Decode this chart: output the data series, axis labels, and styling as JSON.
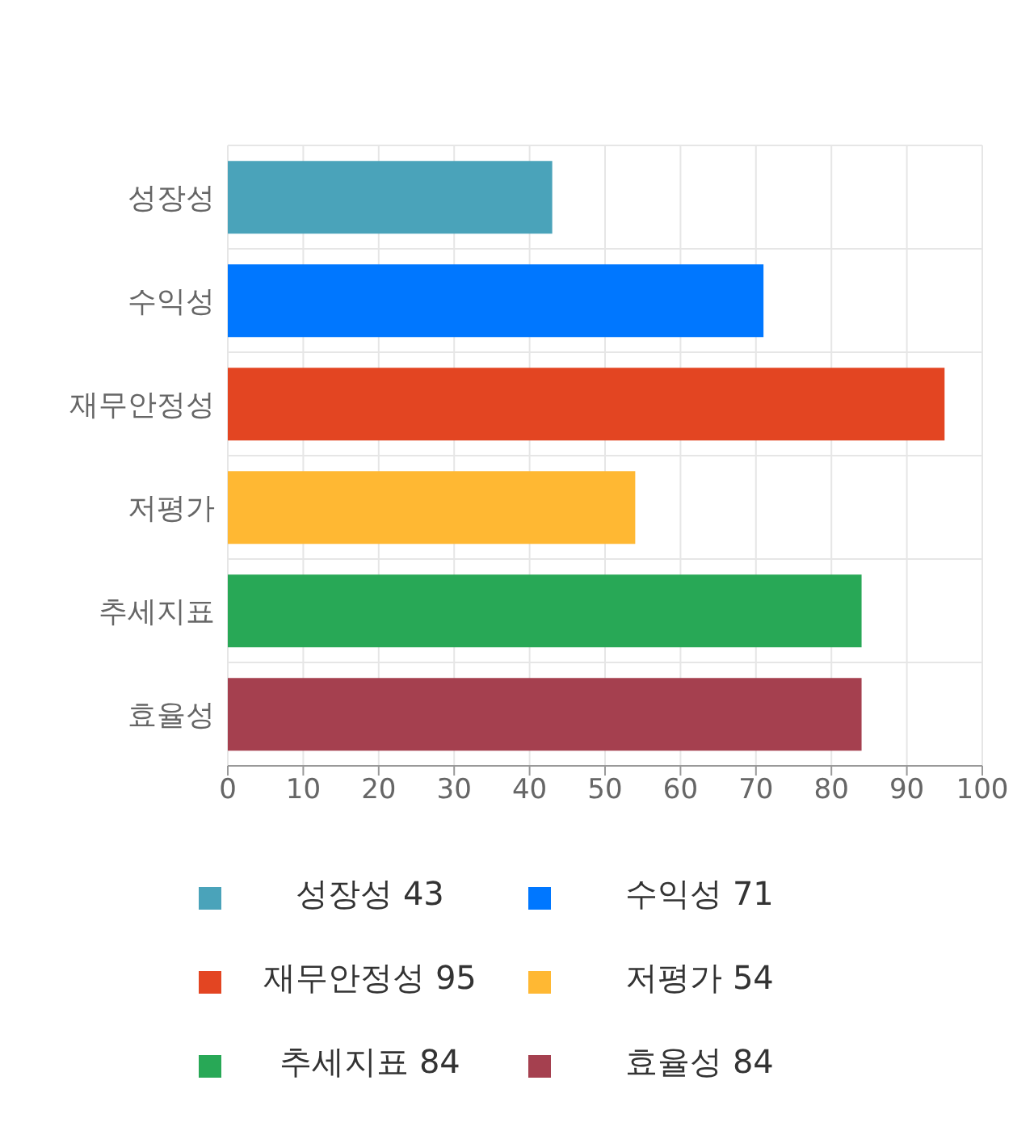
{
  "chart_data": {
    "type": "bar",
    "orientation": "horizontal",
    "stacked": true,
    "categories": [
      "성장성",
      "수익성",
      "재무안정성",
      "저평가",
      "추세지표",
      "효율성"
    ],
    "series": [
      {
        "name": "성장성 43",
        "color": "#4aa3ba",
        "values": [
          43,
          null,
          null,
          null,
          null,
          null
        ]
      },
      {
        "name": "수익성 71",
        "color": "#0077ff",
        "values": [
          null,
          71,
          null,
          null,
          null,
          null
        ]
      },
      {
        "name": "재무안정성 95",
        "color": "#e34522",
        "values": [
          null,
          null,
          95,
          null,
          null,
          null
        ]
      },
      {
        "name": "저평가 54",
        "color": "#ffb833",
        "values": [
          null,
          null,
          null,
          54,
          null,
          null
        ]
      },
      {
        "name": "추세지표 84",
        "color": "#28a856",
        "values": [
          null,
          null,
          null,
          null,
          84,
          null
        ]
      },
      {
        "name": "효율성 84",
        "color": "#a5404f",
        "values": [
          null,
          null,
          null,
          null,
          null,
          84
        ]
      }
    ],
    "xlim": [
      0,
      100
    ],
    "xticks": [
      0,
      10,
      20,
      30,
      40,
      50,
      60,
      70,
      80,
      90,
      100
    ],
    "grid": true,
    "legend": "bottom"
  }
}
